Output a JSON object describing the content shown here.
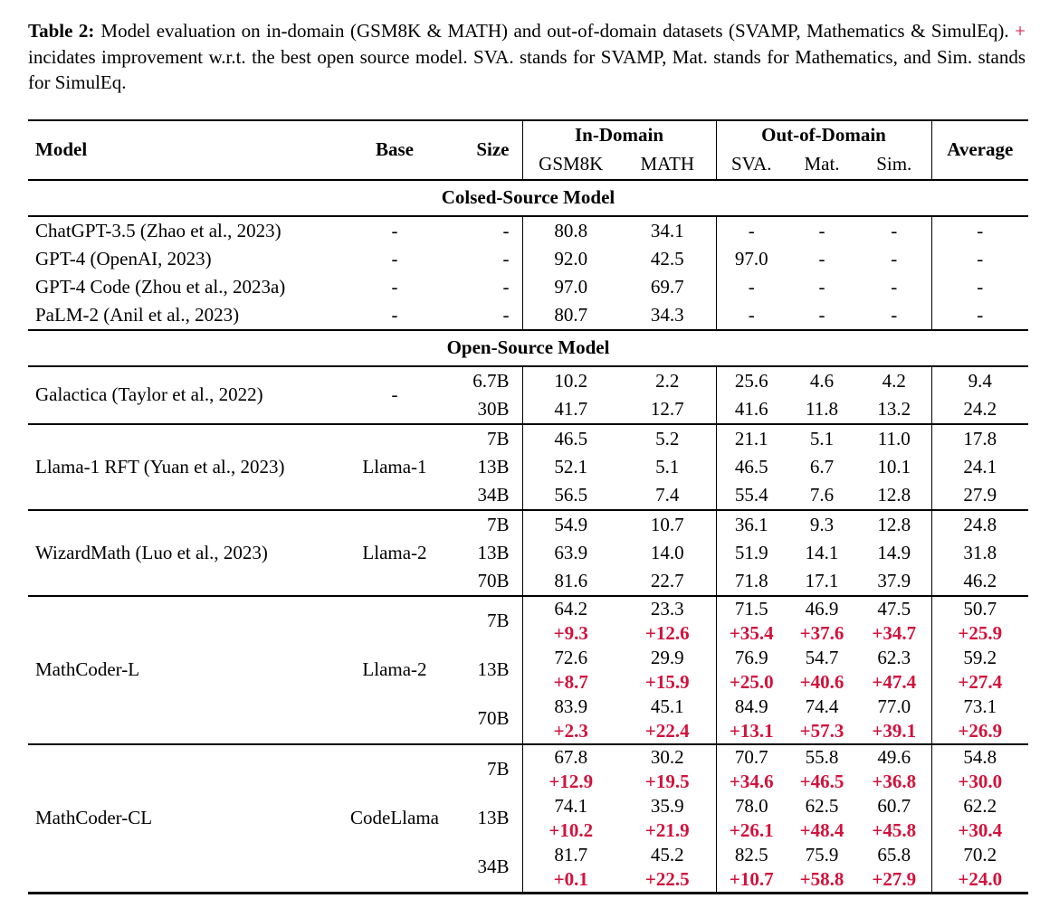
{
  "caption": {
    "label": "Table 2:",
    "before_plus": "Model evaluation on in-domain (GSM8K & MATH) and out-of-domain datasets (SVAMP, Mathematics & SimulEq). ",
    "plus": "+",
    "after_plus": " incidates improvement w.r.t. the best open source model. SVA. stands for SVAMP, Mat. stands for Mathematics, and Sim. stands for SimulEq."
  },
  "colors": {
    "improvement_red": "#d2123c",
    "text": "#000000",
    "background": "#ffffff"
  },
  "table": {
    "header": {
      "model": "Model",
      "base": "Base",
      "size": "Size",
      "in_domain": "In-Domain",
      "out_of_domain": "Out-of-Domain",
      "average": "Average",
      "sub": [
        "GSM8K",
        "MATH",
        "SVA.",
        "Mat.",
        "Sim."
      ]
    },
    "sections": [
      {
        "title": "Colsed-Source Model",
        "groups": [
          {
            "model": "ChatGPT-3.5 (Zhao et al., 2023)",
            "base": "-",
            "rule": false,
            "rows": [
              {
                "size": "-",
                "values": [
                  "80.8",
                  "34.1",
                  "-",
                  "-",
                  "-",
                  "-"
                ]
              }
            ]
          },
          {
            "model": "GPT-4 (OpenAI, 2023)",
            "base": "-",
            "rule": false,
            "rows": [
              {
                "size": "-",
                "values": [
                  "92.0",
                  "42.5",
                  "97.0",
                  "-",
                  "-",
                  "-"
                ]
              }
            ]
          },
          {
            "model": "GPT-4 Code (Zhou et al., 2023a)",
            "base": "-",
            "rule": false,
            "rows": [
              {
                "size": "-",
                "values": [
                  "97.0",
                  "69.7",
                  "-",
                  "-",
                  "-",
                  "-"
                ]
              }
            ]
          },
          {
            "model": "PaLM-2 (Anil et al., 2023)",
            "base": "-",
            "rule": false,
            "rows": [
              {
                "size": "-",
                "values": [
                  "80.7",
                  "34.3",
                  "-",
                  "-",
                  "-",
                  "-"
                ]
              }
            ]
          }
        ]
      },
      {
        "title": "Open-Source Model",
        "groups": [
          {
            "model": "Galactica (Taylor et al., 2022)",
            "base": "-",
            "rule": true,
            "rows": [
              {
                "size": "6.7B",
                "values": [
                  "10.2",
                  "2.2",
                  "25.6",
                  "4.6",
                  "4.2",
                  "9.4"
                ]
              },
              {
                "size": "30B",
                "values": [
                  "41.7",
                  "12.7",
                  "41.6",
                  "11.8",
                  "13.2",
                  "24.2"
                ]
              }
            ]
          },
          {
            "model": "Llama-1 RFT (Yuan et al., 2023)",
            "base": "Llama-1",
            "rule": true,
            "rows": [
              {
                "size": "7B",
                "values": [
                  "46.5",
                  "5.2",
                  "21.1",
                  "5.1",
                  "11.0",
                  "17.8"
                ]
              },
              {
                "size": "13B",
                "values": [
                  "52.1",
                  "5.1",
                  "46.5",
                  "6.7",
                  "10.1",
                  "24.1"
                ]
              },
              {
                "size": "34B",
                "values": [
                  "56.5",
                  "7.4",
                  "55.4",
                  "7.6",
                  "12.8",
                  "27.9"
                ]
              }
            ]
          },
          {
            "model": "WizardMath (Luo et al., 2023)",
            "base": "Llama-2",
            "rule": true,
            "rows": [
              {
                "size": "7B",
                "values": [
                  "54.9",
                  "10.7",
                  "36.1",
                  "9.3",
                  "12.8",
                  "24.8"
                ]
              },
              {
                "size": "13B",
                "values": [
                  "63.9",
                  "14.0",
                  "51.9",
                  "14.1",
                  "14.9",
                  "31.8"
                ]
              },
              {
                "size": "70B",
                "values": [
                  "81.6",
                  "22.7",
                  "71.8",
                  "17.1",
                  "37.9",
                  "46.2"
                ]
              }
            ]
          },
          {
            "model": "MathCoder-L",
            "base": "Llama-2",
            "rule": true,
            "rows": [
              {
                "size": "7B",
                "values": [
                  "64.2",
                  "23.3",
                  "71.5",
                  "46.9",
                  "47.5",
                  "50.7"
                ],
                "delta": [
                  "+9.3",
                  "+12.6",
                  "+35.4",
                  "+37.6",
                  "+34.7",
                  "+25.9"
                ]
              },
              {
                "size": "13B",
                "values": [
                  "72.6",
                  "29.9",
                  "76.9",
                  "54.7",
                  "62.3",
                  "59.2"
                ],
                "delta": [
                  "+8.7",
                  "+15.9",
                  "+25.0",
                  "+40.6",
                  "+47.4",
                  "+27.4"
                ]
              },
              {
                "size": "70B",
                "values": [
                  "83.9",
                  "45.1",
                  "84.9",
                  "74.4",
                  "77.0",
                  "73.1"
                ],
                "delta": [
                  "+2.3",
                  "+22.4",
                  "+13.1",
                  "+57.3",
                  "+39.1",
                  "+26.9"
                ]
              }
            ]
          },
          {
            "model": "MathCoder-CL",
            "base": "CodeLlama",
            "rule": true,
            "rows": [
              {
                "size": "7B",
                "values": [
                  "67.8",
                  "30.2",
                  "70.7",
                  "55.8",
                  "49.6",
                  "54.8"
                ],
                "delta": [
                  "+12.9",
                  "+19.5",
                  "+34.6",
                  "+46.5",
                  "+36.8",
                  "+30.0"
                ]
              },
              {
                "size": "13B",
                "values": [
                  "74.1",
                  "35.9",
                  "78.0",
                  "62.5",
                  "60.7",
                  "62.2"
                ],
                "delta": [
                  "+10.2",
                  "+21.9",
                  "+26.1",
                  "+48.4",
                  "+45.8",
                  "+30.4"
                ]
              },
              {
                "size": "34B",
                "values": [
                  "81.7",
                  "45.2",
                  "82.5",
                  "75.9",
                  "65.8",
                  "70.2"
                ],
                "delta": [
                  "+0.1",
                  "+22.5",
                  "+10.7",
                  "+58.8",
                  "+27.9",
                  "+24.0"
                ]
              }
            ]
          }
        ]
      }
    ]
  }
}
